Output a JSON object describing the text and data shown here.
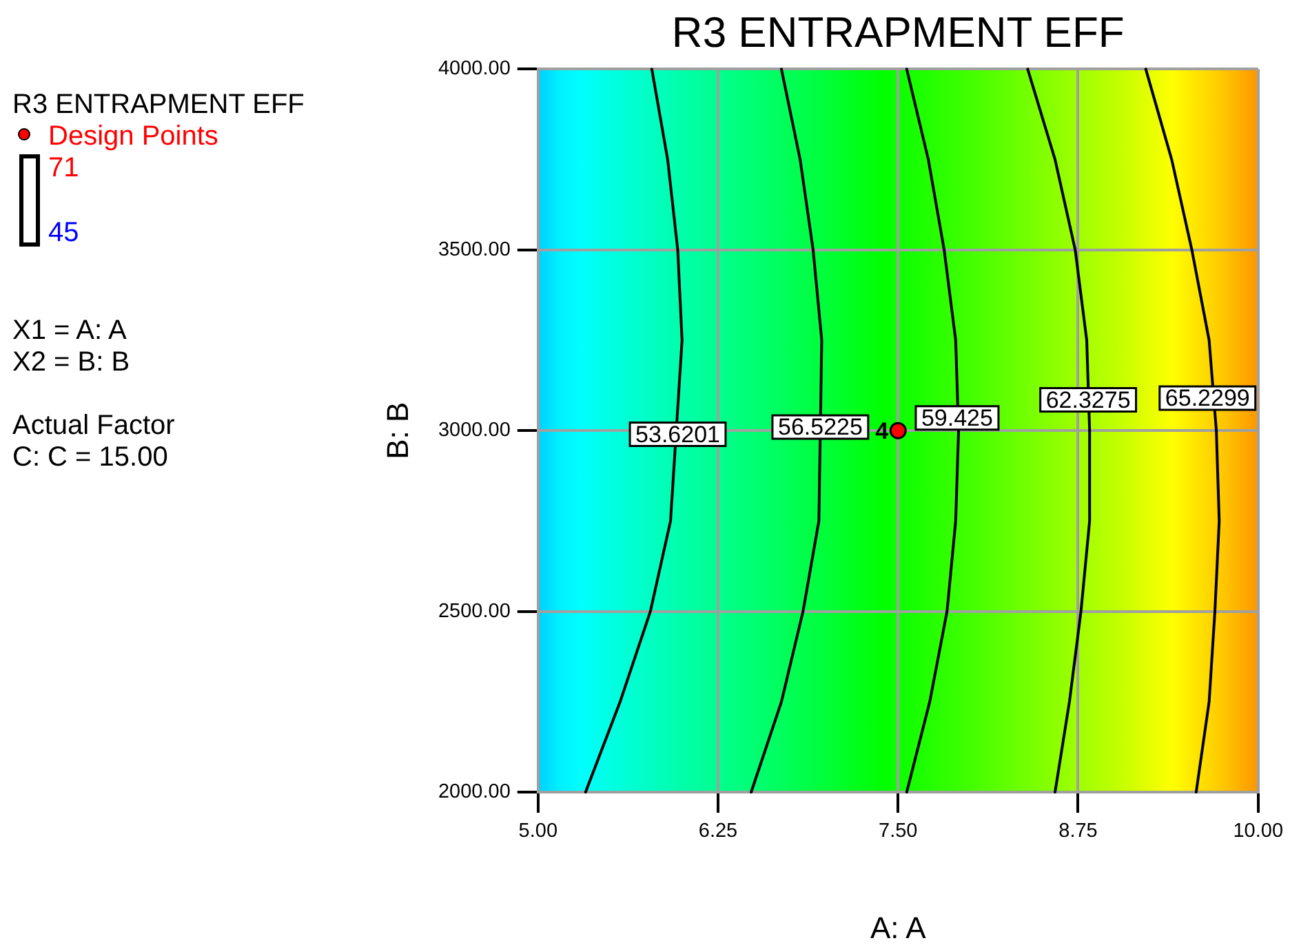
{
  "chart_data": {
    "type": "line",
    "title": "R3 ENTRAPMENT EFF",
    "xlabel": "A: A",
    "ylabel": "B: B",
    "legend_title": "R3 ENTRAPMENT EFF",
    "legend": "left",
    "grid": true,
    "xlim": [
      5,
      10
    ],
    "xticks": [
      {
        "value": 5,
        "label": "5.00"
      },
      6.25,
      {
        "value": 7.5,
        "label": "7.50"
      },
      8.75,
      {
        "value": 10,
        "label": "10.00"
      }
    ],
    "ylim": [
      2000,
      4000
    ],
    "yticks": [
      {
        "value": 2000,
        "label": "2000.00"
      },
      {
        "value": 2500,
        "label": "2500.00"
      },
      {
        "value": 3000,
        "label": "3000.00"
      },
      {
        "value": 3500,
        "label": "3500.00"
      },
      {
        "value": 4000,
        "label": "4000.00"
      }
    ],
    "series": [
      {
        "color": "#000000",
        "x": [
          5.79,
          5.9,
          5.97,
          6.0,
          5.92,
          5.78,
          5.57,
          5.33
        ],
        "values": [
          4000,
          3750,
          3500,
          3250,
          2750,
          2500,
          2250,
          2000
        ]
      },
      {
        "color": "#000000",
        "x": [
          6.69,
          6.82,
          6.91,
          6.97,
          6.95,
          6.84,
          6.69,
          6.48
        ],
        "values": [
          4000,
          3750,
          3500,
          3250,
          2750,
          2500,
          2250,
          2000
        ]
      },
      {
        "color": "#000000",
        "x": [
          7.56,
          7.71,
          7.82,
          7.9,
          7.92,
          7.9,
          7.84,
          7.72,
          7.56
        ],
        "values": [
          4000,
          3750,
          3500,
          3250,
          3000,
          2750,
          2500,
          2250,
          2000
        ]
      },
      {
        "color": "#000000",
        "x": [
          8.4,
          8.59,
          8.73,
          8.81,
          8.83,
          8.83,
          8.77,
          8.69,
          8.59
        ],
        "values": [
          4000,
          3750,
          3500,
          3250,
          3000,
          2750,
          2500,
          2250,
          2000
        ]
      },
      {
        "color": "#000000",
        "x": [
          9.22,
          9.4,
          9.54,
          9.66,
          9.71,
          9.73,
          9.7,
          9.66,
          9.57
        ],
        "values": [
          4000,
          3750,
          3500,
          3250,
          3000,
          2750,
          2500,
          2250,
          2000
        ]
      },
      {
        "name": "Design Points",
        "type": "scatter",
        "color": "#ff0000",
        "marker": "circle",
        "x": [
          7.5
        ],
        "values": [
          3000
        ]
      }
    ],
    "annotations": [
      {
        "text": "53.6201",
        "x": 5.97,
        "y": 2990
      },
      {
        "text": "56.5225",
        "x": 6.96,
        "y": 3010
      },
      {
        "text": "59.425",
        "x": 7.91,
        "y": 3035
      },
      {
        "text": "62.3275",
        "x": 8.82,
        "y": 3085
      },
      {
        "text": "65.2299",
        "x": 9.69,
        "y": 3090
      },
      {
        "text": "4",
        "x": 7.5,
        "y": 3000
      },
      "71",
      "45",
      "X1 = A: A\nX2 = B: B",
      "Actual Factor\nC: C = 15.00"
    ]
  }
}
